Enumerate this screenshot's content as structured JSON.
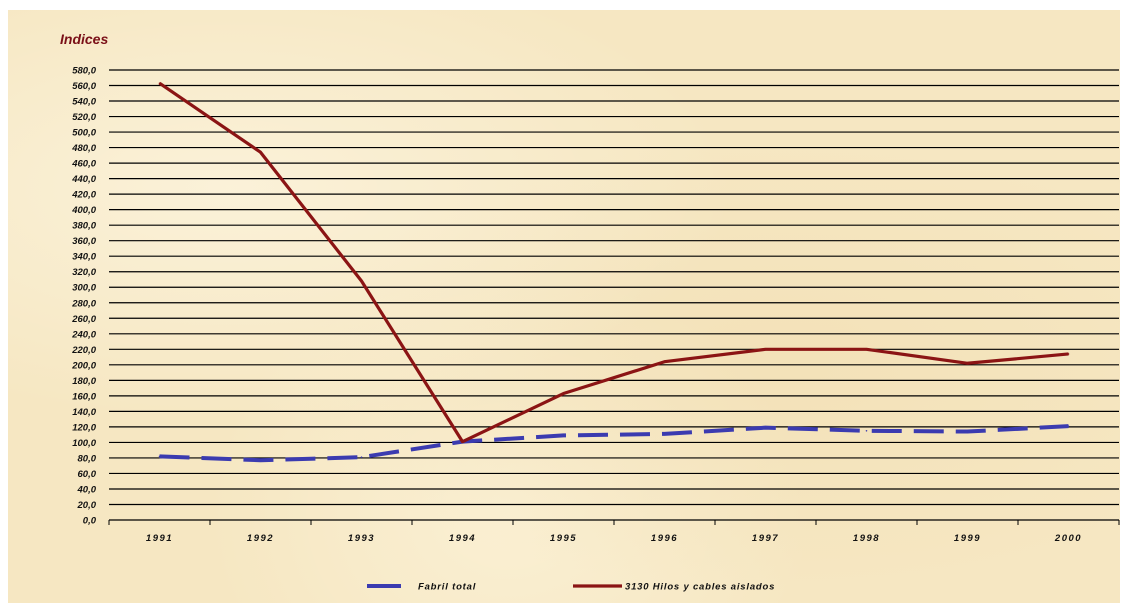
{
  "chart_data": {
    "type": "line",
    "ylabel": "Indices",
    "xlabel": "",
    "ylim": [
      0,
      580
    ],
    "ystep": 20,
    "grid": true,
    "legend_position": "bottom",
    "categories": [
      "1991",
      "1992",
      "1993",
      "1994",
      "1995",
      "1996",
      "1997",
      "1998",
      "1999",
      "2000"
    ],
    "series": [
      {
        "name": "Fabril total",
        "color": "#3b3bb0",
        "dash": true,
        "values": [
          82,
          77,
          81,
          101,
          109,
          111,
          119,
          115,
          114,
          121
        ]
      },
      {
        "name": "3130 Hilos y cables aislados",
        "color": "#8b1414",
        "dash": false,
        "values": [
          563,
          474,
          308,
          101,
          163,
          204,
          220,
          220,
          202,
          214
        ]
      }
    ],
    "y_ticks": [
      "0,0",
      "20,0",
      "40,0",
      "60,0",
      "80,0",
      "100,0",
      "120,0",
      "140,0",
      "160,0",
      "180,0",
      "200,0",
      "220,0",
      "240,0",
      "260,0",
      "280,0",
      "300,0",
      "320,0",
      "340,0",
      "360,0",
      "380,0",
      "400,0",
      "420,0",
      "440,0",
      "460,0",
      "480,0",
      "500,0",
      "520,0",
      "540,0",
      "560,0",
      "580,0"
    ]
  }
}
